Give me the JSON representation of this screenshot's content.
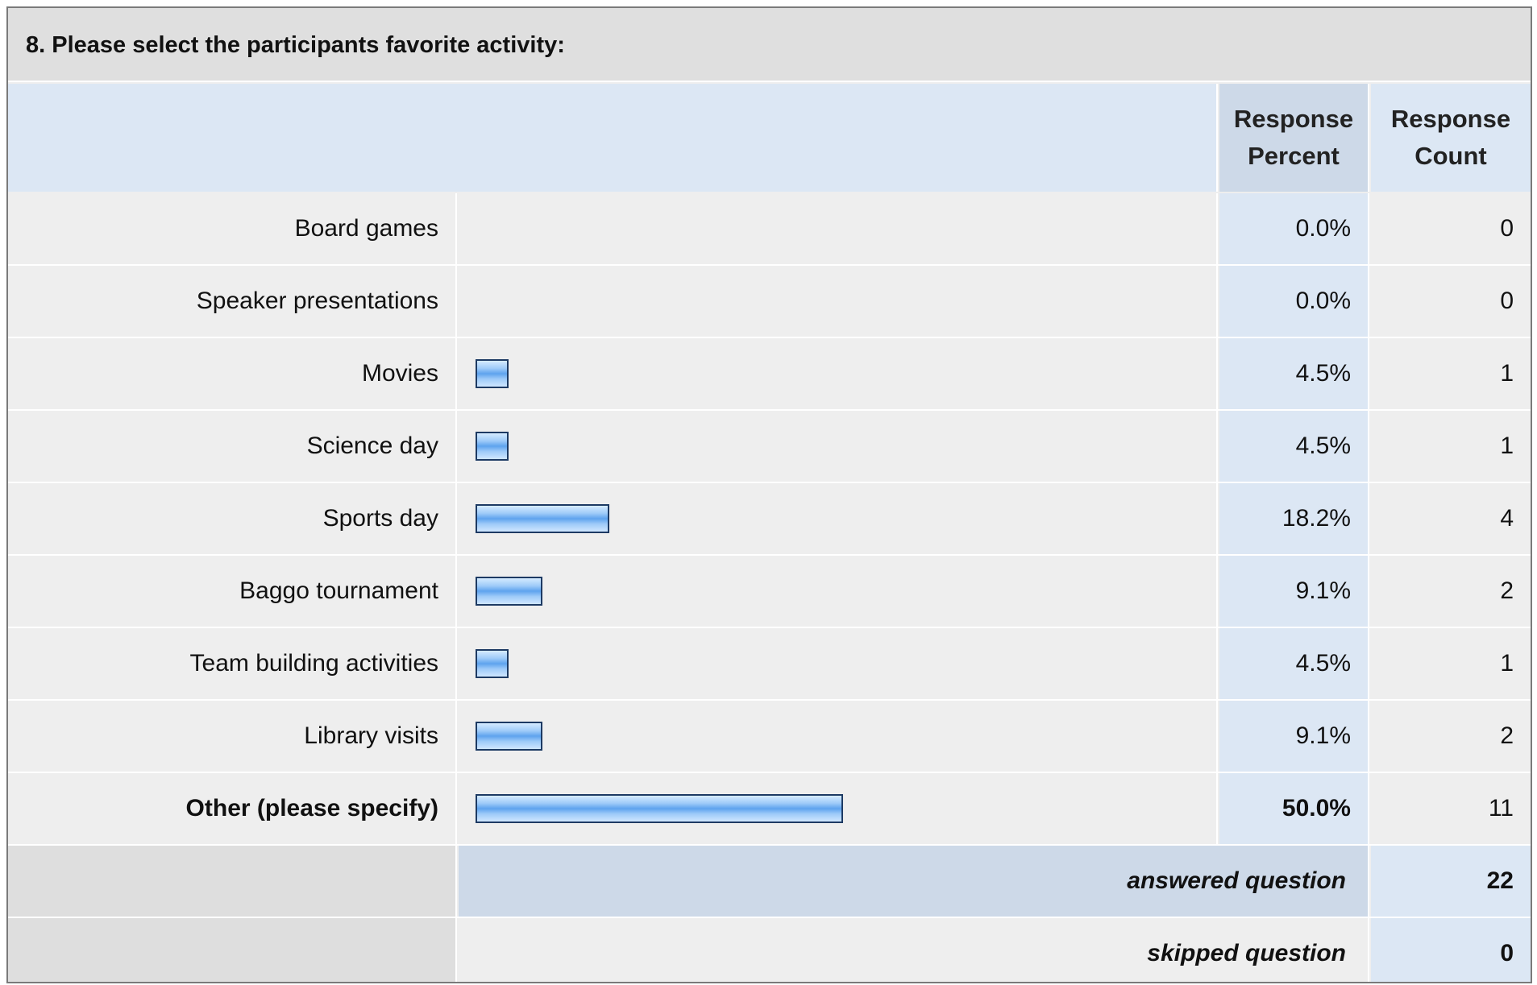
{
  "question_title": "8. Please select the participants favorite activity:",
  "headers": {
    "percent": [
      "Response",
      "Percent"
    ],
    "count": [
      "Response",
      "Count"
    ]
  },
  "colors": {
    "header_bg": "#dce7f4",
    "bar_fill": "#6aaaf0",
    "bar_border": "#1d3a63"
  },
  "chart_data": {
    "type": "bar",
    "orientation": "horizontal",
    "categories": [
      "Board games",
      "Speaker presentations",
      "Movies",
      "Science day",
      "Sports day",
      "Baggo tournament",
      "Team building activities",
      "Library visits",
      "Other (please specify)"
    ],
    "values": [
      0.0,
      0.0,
      4.5,
      4.5,
      18.2,
      9.1,
      4.5,
      9.1,
      50.0
    ],
    "percent_labels": [
      "0.0%",
      "0.0%",
      "4.5%",
      "4.5%",
      "18.2%",
      "9.1%",
      "4.5%",
      "9.1%",
      "50.0%"
    ],
    "counts": [
      "0",
      "0",
      "1",
      "1",
      "4",
      "2",
      "1",
      "2",
      "11"
    ],
    "bold_rows": [
      8
    ],
    "xlim": [
      0,
      100
    ]
  },
  "footer": [
    {
      "label": "answered question",
      "value": "22"
    },
    {
      "label": "skipped question",
      "value": "0"
    }
  ]
}
